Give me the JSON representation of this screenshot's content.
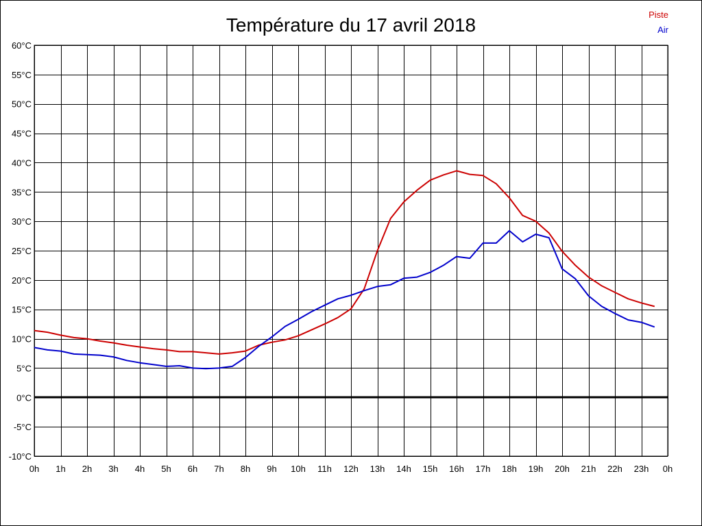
{
  "chart_data": {
    "type": "line",
    "title": "Température du 17 avril 2018",
    "xlabel": "",
    "ylabel": "",
    "xlim": [
      0,
      24
    ],
    "ylim": [
      -10,
      60
    ],
    "grid": true,
    "legend_position": "top-right",
    "x_tick_labels": [
      "0h",
      "1h",
      "2h",
      "3h",
      "4h",
      "5h",
      "6h",
      "7h",
      "8h",
      "9h",
      "10h",
      "11h",
      "12h",
      "13h",
      "14h",
      "15h",
      "16h",
      "17h",
      "18h",
      "19h",
      "20h",
      "21h",
      "22h",
      "23h",
      "0h"
    ],
    "y_ticks": [
      -10,
      -5,
      0,
      5,
      10,
      15,
      20,
      25,
      30,
      35,
      40,
      45,
      50,
      55,
      60
    ],
    "y_tick_labels": [
      "-10°C",
      "-5°C",
      "0°C",
      "5°C",
      "10°C",
      "15°C",
      "20°C",
      "25°C",
      "30°C",
      "35°C",
      "40°C",
      "45°C",
      "50°C",
      "55°C",
      "60°C"
    ],
    "x": [
      0,
      0.5,
      1,
      1.5,
      2,
      2.5,
      3,
      3.5,
      4,
      4.5,
      5,
      5.5,
      6,
      6.5,
      7,
      7.5,
      8,
      8.5,
      9,
      9.5,
      10,
      10.5,
      11,
      11.5,
      12,
      12.5,
      13,
      13.5,
      14,
      14.5,
      15,
      15.5,
      16,
      16.5,
      17,
      17.5,
      18,
      18.5,
      19,
      19.5,
      20,
      20.5,
      21,
      21.5,
      22,
      22.5,
      23,
      23.5
    ],
    "series": [
      {
        "name": "Piste",
        "color": "#cc0000",
        "values": [
          11.4,
          11.1,
          10.6,
          10.2,
          10.0,
          9.6,
          9.3,
          8.9,
          8.6,
          8.3,
          8.1,
          7.8,
          7.8,
          7.6,
          7.4,
          7.6,
          7.9,
          8.9,
          9.4,
          9.8,
          10.5,
          11.5,
          12.5,
          13.6,
          15.1,
          18.5,
          25.0,
          30.5,
          33.3,
          35.3,
          37.0,
          37.9,
          38.6,
          38.0,
          37.8,
          36.4,
          34.0,
          31.0,
          30.0,
          28.0,
          24.9,
          22.5,
          20.5,
          19.0,
          17.9,
          16.8,
          16.1,
          15.5
        ]
      },
      {
        "name": "Air",
        "color": "#0000cc",
        "values": [
          8.5,
          8.1,
          7.9,
          7.4,
          7.3,
          7.2,
          6.9,
          6.3,
          5.9,
          5.6,
          5.3,
          5.4,
          5.0,
          4.9,
          5.0,
          5.3,
          6.8,
          8.7,
          10.3,
          12.1,
          13.3,
          14.6,
          15.7,
          16.8,
          17.4,
          18.2,
          18.9,
          19.2,
          20.3,
          20.5,
          21.3,
          22.5,
          24.0,
          23.7,
          26.3,
          26.3,
          28.4,
          26.5,
          27.8,
          27.2,
          21.9,
          20.2,
          17.3,
          15.5,
          14.3,
          13.2,
          12.8,
          12.0
        ]
      }
    ]
  }
}
